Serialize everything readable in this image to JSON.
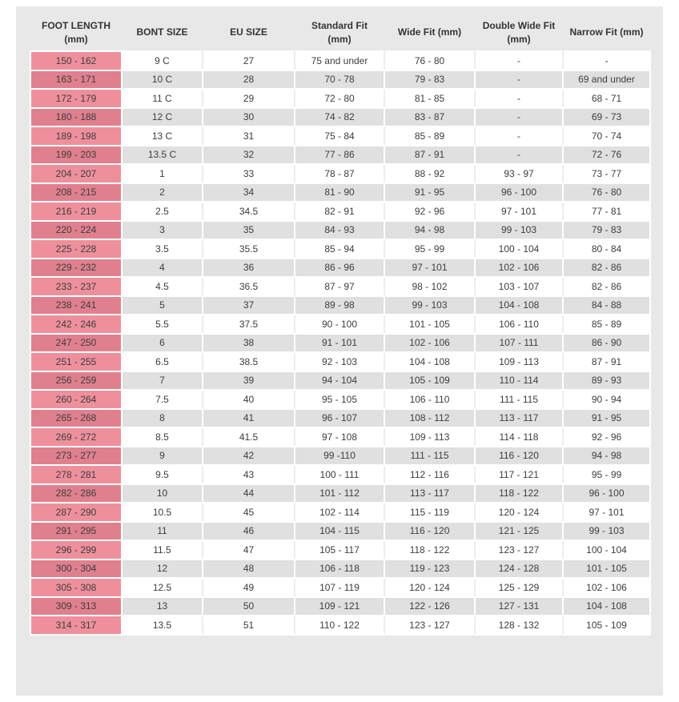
{
  "colors": {
    "panel_bg": "#e8e8e8",
    "row_stripe_gray": "#e0e0e0",
    "foot_length_pink_light": "#ee909c",
    "foot_length_pink_dark": "#e0808e",
    "cell_border": "#ffffff",
    "text": "#3d3d3d"
  },
  "chart_data": {
    "type": "table",
    "columns": [
      {
        "key": "foot-length",
        "label": "FOOT LENGTH (mm)"
      },
      {
        "key": "bont-size",
        "label": "BONT SIZE"
      },
      {
        "key": "eu-size",
        "label": "EU SIZE"
      },
      {
        "key": "standard-fit",
        "label": "Standard Fit (mm)"
      },
      {
        "key": "wide-fit",
        "label": "Wide Fit (mm)"
      },
      {
        "key": "double-wide-fit",
        "label": "Double Wide Fit (mm)"
      },
      {
        "key": "narrow-fit",
        "label": "Narrow Fit (mm)"
      }
    ],
    "rows": [
      [
        "150 - 162",
        "9 C",
        "27",
        "75 and under",
        "76 - 80",
        "-",
        "-"
      ],
      [
        "163 - 171",
        "10 C",
        "28",
        "70 - 78",
        "79 - 83",
        "-",
        "69 and under"
      ],
      [
        "172 - 179",
        "11 C",
        "29",
        "72 - 80",
        "81 - 85",
        "-",
        "68 - 71"
      ],
      [
        "180 - 188",
        "12 C",
        "30",
        "74 - 82",
        "83 - 87",
        "-",
        "69 - 73"
      ],
      [
        "189 - 198",
        "13 C",
        "31",
        "75 - 84",
        "85 - 89",
        "-",
        "70 - 74"
      ],
      [
        "199 - 203",
        "13.5 C",
        "32",
        "77 - 86",
        "87 - 91",
        "-",
        "72 - 76"
      ],
      [
        "204 - 207",
        "1",
        "33",
        "78 - 87",
        "88 - 92",
        "93 - 97",
        "73 - 77"
      ],
      [
        "208 - 215",
        "2",
        "34",
        "81 - 90",
        "91 - 95",
        "96 - 100",
        "76 - 80"
      ],
      [
        "216 - 219",
        "2.5",
        "34.5",
        "82 - 91",
        "92 - 96",
        "97 - 101",
        "77 - 81"
      ],
      [
        "220 - 224",
        "3",
        "35",
        "84 - 93",
        "94 - 98",
        "99 - 103",
        "79 - 83"
      ],
      [
        "225 - 228",
        "3.5",
        "35.5",
        "85 - 94",
        "95 - 99",
        "100 - 104",
        "80 - 84"
      ],
      [
        "229 - 232",
        "4",
        "36",
        "86 - 96",
        "97 - 101",
        "102 - 106",
        "82 - 86"
      ],
      [
        "233 - 237",
        "4.5",
        "36.5",
        "87 - 97",
        "98 - 102",
        "103 - 107",
        "82 - 86"
      ],
      [
        "238 - 241",
        "5",
        "37",
        "89 - 98",
        "99 - 103",
        "104 - 108",
        "84 - 88"
      ],
      [
        "242 - 246",
        "5.5",
        "37.5",
        "90 - 100",
        "101 - 105",
        "106 - 110",
        "85 - 89"
      ],
      [
        "247 - 250",
        "6",
        "38",
        "91 - 101",
        "102 - 106",
        "107 - 111",
        "86 - 90"
      ],
      [
        "251 - 255",
        "6.5",
        "38.5",
        "92 - 103",
        "104 - 108",
        "109 - 113",
        "87 - 91"
      ],
      [
        "256 - 259",
        "7",
        "39",
        "94 - 104",
        "105 - 109",
        "110 - 114",
        "89 - 93"
      ],
      [
        "260 - 264",
        "7.5",
        "40",
        "95 - 105",
        "106 - 110",
        "111 - 115",
        "90 - 94"
      ],
      [
        "265 - 268",
        "8",
        "41",
        "96 - 107",
        "108 - 112",
        "113 - 117",
        "91 - 95"
      ],
      [
        "269 - 272",
        "8.5",
        "41.5",
        "97 - 108",
        "109 - 113",
        "114 - 118",
        "92 - 96"
      ],
      [
        "273 - 277",
        "9",
        "42",
        "99 -110",
        "111 - 115",
        "116 - 120",
        "94 - 98"
      ],
      [
        "278 - 281",
        "9.5",
        "43",
        "100 - 111",
        "112 - 116",
        "117 - 121",
        "95 - 99"
      ],
      [
        "282 - 286",
        "10",
        "44",
        "101 - 112",
        "113 - 117",
        "118 - 122",
        "96 - 100"
      ],
      [
        "287 - 290",
        "10.5",
        "45",
        "102 - 114",
        "115 - 119",
        "120 - 124",
        "97 - 101"
      ],
      [
        "291 - 295",
        "11",
        "46",
        "104 - 115",
        "116 - 120",
        "121 - 125",
        "99 - 103"
      ],
      [
        "296 - 299",
        "11.5",
        "47",
        "105 - 117",
        "118 - 122",
        "123 - 127",
        "100 - 104"
      ],
      [
        "300 - 304",
        "12",
        "48",
        "106 - 118",
        "119 - 123",
        "124 - 128",
        "101 - 105"
      ],
      [
        "305 - 308",
        "12.5",
        "49",
        "107 - 119",
        "120 - 124",
        "125 - 129",
        "102 - 106"
      ],
      [
        "309 - 313",
        "13",
        "50",
        "109 - 121",
        "122 - 126",
        "127 - 131",
        "104 - 108"
      ],
      [
        "314 - 317",
        "13.5",
        "51",
        "110 - 122",
        "123 - 127",
        "128 - 132",
        "105 - 109"
      ]
    ]
  }
}
